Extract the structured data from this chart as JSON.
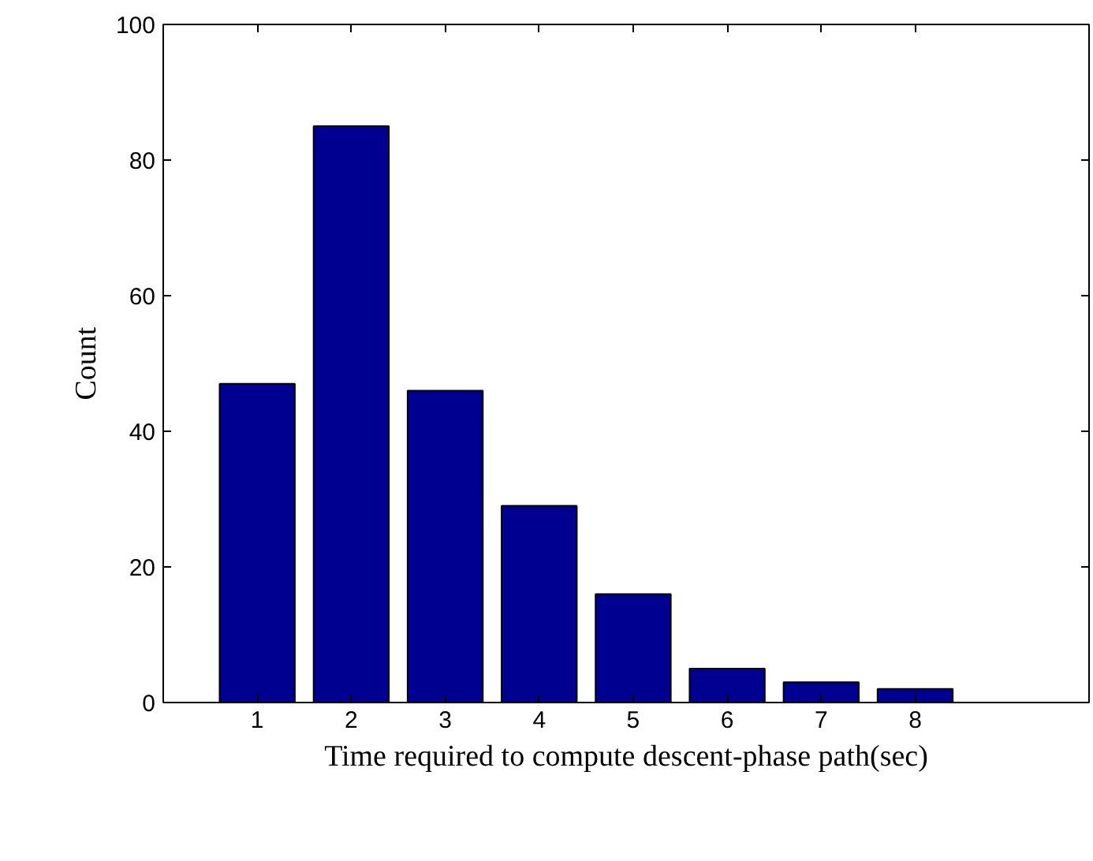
{
  "chart_data": {
    "type": "bar",
    "xlabel": "Time required to compute descent-phase path(sec)",
    "ylabel": "Count",
    "x": [
      1,
      2,
      3,
      4,
      5,
      6,
      7,
      8
    ],
    "values": [
      47,
      85,
      46,
      29,
      16,
      5,
      3,
      2
    ],
    "color": "#000090",
    "xlim": [
      0,
      9.85
    ],
    "xticks": [
      1,
      2,
      3,
      4,
      5,
      6,
      7,
      8
    ],
    "ylim": [
      0,
      100
    ],
    "yticks": [
      0,
      20,
      40,
      60,
      80,
      100
    ],
    "grid": false
  }
}
